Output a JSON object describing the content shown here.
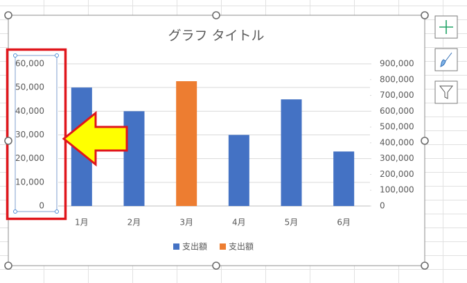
{
  "chart_data": {
    "type": "bar",
    "title": "グラフ タイトル",
    "categories": [
      "1月",
      "2月",
      "3月",
      "4月",
      "5月",
      "6月"
    ],
    "series": [
      {
        "name": "支出額",
        "color": "#4472c4",
        "values": [
          50000,
          40000,
          null,
          30000,
          45000,
          23000
        ]
      },
      {
        "name": "支出額",
        "color": "#ed7d31",
        "axis": "y2",
        "values": [
          null,
          null,
          790000,
          null,
          null,
          null
        ]
      }
    ],
    "ylim": [
      0,
      60000
    ],
    "yticks": [
      0,
      {
        "value": 10000,
        "label": "10,000"
      },
      {
        "value": 20000,
        "label": "20,000"
      },
      {
        "value": 30000,
        "label": "30,000"
      },
      {
        "value": 40000,
        "label": "40,000"
      },
      {
        "value": 50000,
        "label": "50,000"
      },
      {
        "value": 60000,
        "label": "60,000"
      }
    ],
    "y2lim": [
      0,
      900000
    ],
    "y2ticks": [
      0,
      {
        "value": 100000,
        "label": "100,000"
      },
      {
        "value": 200000,
        "label": "200,000"
      },
      {
        "value": 300000,
        "label": "300,000"
      },
      {
        "value": 400000,
        "label": "400,000"
      },
      {
        "value": 500000,
        "label": "500,000"
      },
      {
        "value": 600000,
        "label": "600,000"
      },
      {
        "value": 700000,
        "label": "700,000"
      },
      {
        "value": 800000,
        "label": "800,000"
      },
      {
        "value": 900000,
        "label": "900,000"
      }
    ],
    "grid": true,
    "legend": "bottom"
  }
}
